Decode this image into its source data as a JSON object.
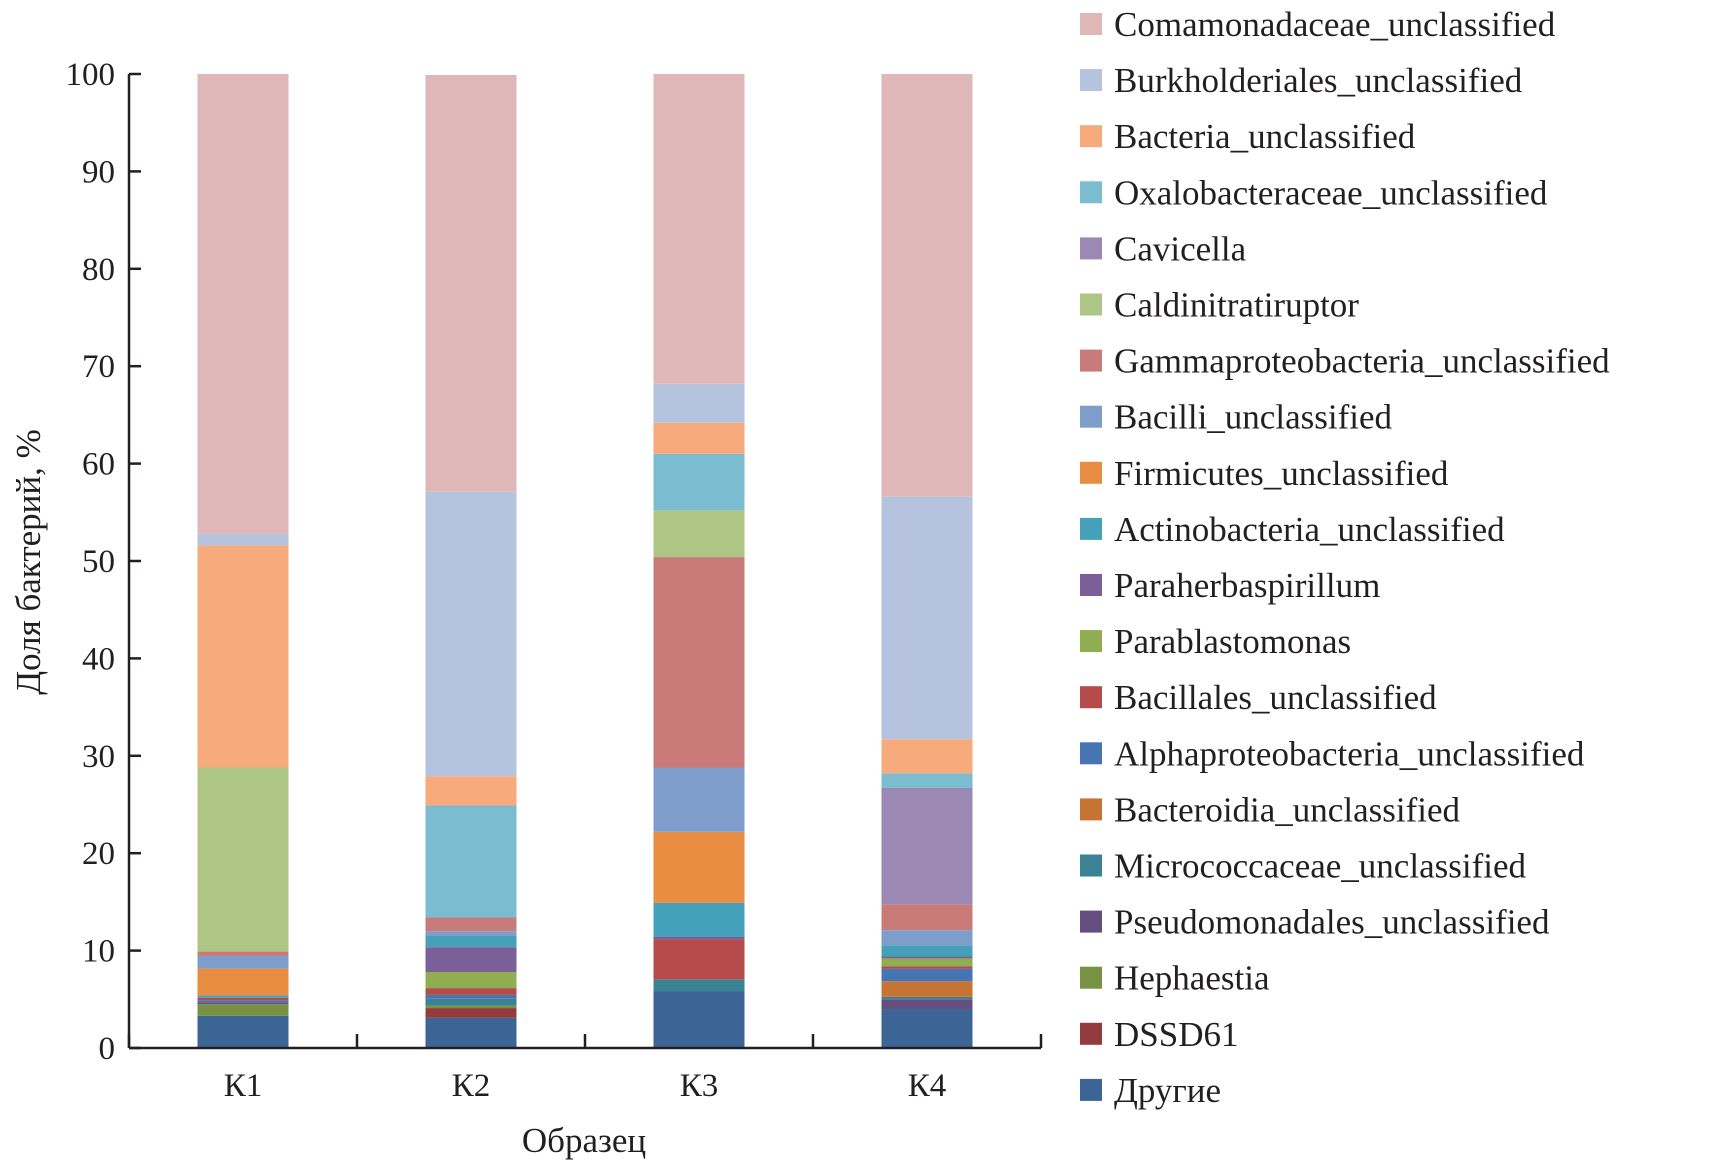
{
  "chart_data": {
    "type": "bar",
    "stacked": true,
    "title": "",
    "xlabel": "Образец",
    "ylabel": "Доля бактерий, %",
    "ylim": [
      0,
      100
    ],
    "yticks": [
      0,
      10,
      20,
      30,
      40,
      50,
      60,
      70,
      80,
      90,
      100
    ],
    "grid": false,
    "legend_position": "right",
    "categories": [
      "К1",
      "К2",
      "К3",
      "К4"
    ],
    "series": [
      {
        "name": "Другие",
        "color": "#3c6495",
        "values": [
          3.3,
          3.1,
          5.8,
          4.0
        ]
      },
      {
        "name": "DSSD61",
        "color": "#943c3d",
        "values": [
          0,
          1.0,
          0,
          0
        ]
      },
      {
        "name": "Hephaestia",
        "color": "#789243",
        "values": [
          1.2,
          0.25,
          0,
          0
        ]
      },
      {
        "name": "Pseudomonadales_unclassified",
        "color": "#634e7f",
        "values": [
          0.2,
          0,
          0,
          1.0
        ]
      },
      {
        "name": "Micrococcaceae_unclassified",
        "color": "#3a8294",
        "values": [
          0,
          0.7,
          1.25,
          0.25
        ]
      },
      {
        "name": "Bacteroidia_unclassified",
        "color": "#c57434",
        "values": [
          0,
          0,
          0,
          1.6
        ]
      },
      {
        "name": "Alphaproteobacteria_unclassified",
        "color": "#4775b1",
        "values": [
          0.2,
          0.4,
          0,
          1.3
        ]
      },
      {
        "name": "Bacillales_unclassified",
        "color": "#b54b4a",
        "values": [
          0.25,
          0.7,
          4.1,
          0.25
        ]
      },
      {
        "name": "Parablastomonas",
        "color": "#90ad52",
        "values": [
          0,
          1.65,
          0,
          0.8
        ]
      },
      {
        "name": "Paraherbaspirillum",
        "color": "#7a5f98",
        "values": [
          0,
          2.55,
          0.25,
          0.2
        ]
      },
      {
        "name": "Actinobacteria_unclassified",
        "color": "#45a1b9",
        "values": [
          0.25,
          1.15,
          3.5,
          1.15
        ]
      },
      {
        "name": "Firmicutes_unclassified",
        "color": "#e88d42",
        "values": [
          2.75,
          0,
          7.3,
          0
        ]
      },
      {
        "name": "Bacilli_unclassified",
        "color": "#7f9dcb",
        "values": [
          1.3,
          0.5,
          6.6,
          1.55
        ]
      },
      {
        "name": "Gammaproteobacteria_unclassified",
        "color": "#c97b7a",
        "values": [
          0.45,
          1.4,
          21.6,
          2.65
        ]
      },
      {
        "name": "Caldinitratiruptor",
        "color": "#adc685",
        "values": [
          18.9,
          0,
          4.8,
          0
        ]
      },
      {
        "name": "Cavicella",
        "color": "#9b89b3",
        "values": [
          0,
          0,
          0,
          11.95
        ]
      },
      {
        "name": "Oxalobacteraceae_unclassified",
        "color": "#7bbcd0",
        "values": [
          0,
          11.5,
          5.8,
          1.5
        ]
      },
      {
        "name": "Bacteria_unclassified",
        "color": "#f7aa7b",
        "values": [
          22.8,
          3.0,
          3.2,
          3.5
        ]
      },
      {
        "name": "Burkholderiales_unclassified",
        "color": "#b5c3de",
        "values": [
          1.2,
          29.2,
          4.0,
          24.9
        ]
      },
      {
        "name": "Comamonadaceae_unclassified",
        "color": "#dfb7b6",
        "values": [
          47.2,
          42.8,
          31.8,
          43.4
        ]
      }
    ]
  }
}
